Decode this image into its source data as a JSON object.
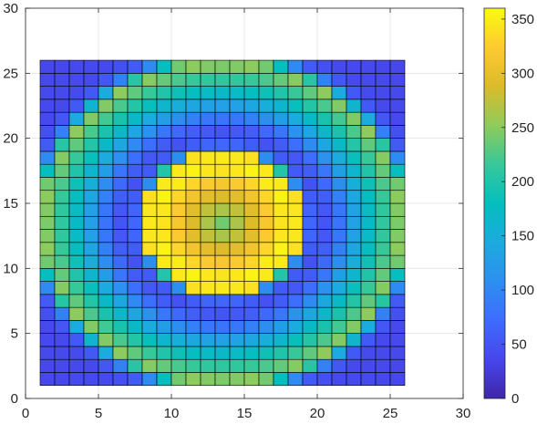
{
  "chart_data": {
    "type": "heatmap",
    "title": "",
    "xlabel": "",
    "ylabel": "",
    "xlim": [
      0,
      30
    ],
    "ylim": [
      0,
      30
    ],
    "xticks": [
      0,
      5,
      10,
      15,
      20,
      25,
      30
    ],
    "yticks": [
      0,
      5,
      10,
      15,
      20,
      25,
      30
    ],
    "grid": true,
    "colormap": "parula",
    "colorbar": {
      "location": "right",
      "range": [
        0,
        360
      ],
      "ticks": [
        0,
        50,
        100,
        150,
        200,
        250,
        300,
        350
      ]
    },
    "cells": {
      "x_range": [
        1,
        26
      ],
      "y_range": [
        1,
        26
      ],
      "cell_size": 1,
      "grid_lines": "black",
      "description": "Concentric rings: values rise from low at corners to a high ring (~220-270) near radius 12, dip low (~50) near radius 6-7, then peak (~355) at radius ~4.5 falling to ~240 at the center (x=13.5, y=13.5)"
    }
  }
}
